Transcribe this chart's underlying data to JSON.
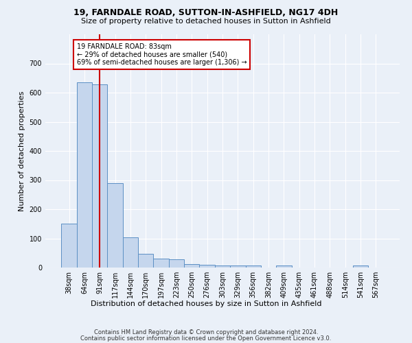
{
  "title1": "19, FARNDALE ROAD, SUTTON-IN-ASHFIELD, NG17 4DH",
  "title2": "Size of property relative to detached houses in Sutton in Ashfield",
  "xlabel": "Distribution of detached houses by size in Sutton in Ashfield",
  "ylabel": "Number of detached properties",
  "footnote1": "Contains HM Land Registry data © Crown copyright and database right 2024.",
  "footnote2": "Contains public sector information licensed under the Open Government Licence v3.0.",
  "bar_labels": [
    "38sqm",
    "64sqm",
    "91sqm",
    "117sqm",
    "144sqm",
    "170sqm",
    "197sqm",
    "223sqm",
    "250sqm",
    "276sqm",
    "303sqm",
    "329sqm",
    "356sqm",
    "382sqm",
    "409sqm",
    "435sqm",
    "461sqm",
    "488sqm",
    "514sqm",
    "541sqm",
    "567sqm"
  ],
  "bar_values": [
    150,
    635,
    628,
    289,
    103,
    46,
    30,
    28,
    12,
    10,
    8,
    7,
    7,
    0,
    8,
    0,
    0,
    0,
    0,
    8,
    0
  ],
  "bar_color": "#c5d6ed",
  "bar_edge_color": "#5b8fc4",
  "vline_x": 2,
  "vline_color": "#cc0000",
  "annotation_text": "19 FARNDALE ROAD: 83sqm\n← 29% of detached houses are smaller (540)\n69% of semi-detached houses are larger (1,306) →",
  "annotation_box_color": "#ffffff",
  "annotation_box_edge": "#cc0000",
  "ylim": [
    0,
    800
  ],
  "yticks": [
    0,
    100,
    200,
    300,
    400,
    500,
    600,
    700,
    800
  ],
  "bg_color": "#eaf0f8",
  "plot_bg_color": "#eaf0f8",
  "grid_color": "#ffffff",
  "title1_fontsize": 9,
  "title2_fontsize": 8,
  "ylabel_fontsize": 8,
  "xlabel_fontsize": 8,
  "tick_fontsize": 7,
  "footnote_fontsize": 6,
  "annot_fontsize": 7
}
